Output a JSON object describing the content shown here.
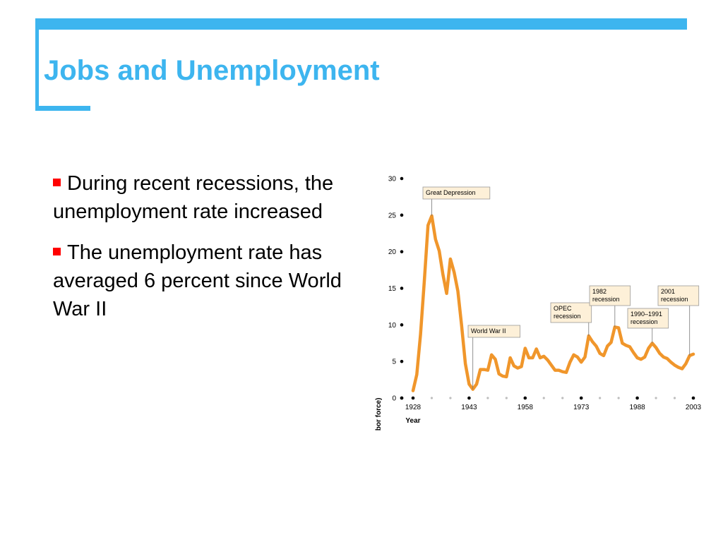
{
  "slide": {
    "title": "Jobs and Unemployment",
    "accent_color": "#3db5ef",
    "bullet_color": "#ff0000",
    "bullets": [
      "During recent recessions, the unemployment rate increased",
      "The unemployment rate has averaged 6 percent since World War II"
    ]
  },
  "chart_data": {
    "type": "line",
    "xlabel": "Year",
    "ylabel": "Unemployment rate (percentage of labor force)",
    "xlim": [
      1928,
      2003
    ],
    "ylim": [
      0,
      30
    ],
    "x_ticks": [
      1928,
      1943,
      1958,
      1973,
      1988,
      2003
    ],
    "y_ticks": [
      0,
      5,
      10,
      15,
      20,
      25,
      30
    ],
    "grid": false,
    "line_color": "#f0962b",
    "annotation_fill": "#fdf0d8",
    "series": [
      {
        "x": [
          1928,
          1929,
          1930,
          1931,
          1932,
          1933,
          1934,
          1935,
          1936,
          1937,
          1938,
          1939,
          1940,
          1941,
          1942,
          1943,
          1944,
          1945,
          1946,
          1947,
          1948,
          1949,
          1950,
          1951,
          1952,
          1953,
          1954,
          1955,
          1956,
          1957,
          1958,
          1959,
          1960,
          1961,
          1962,
          1963,
          1964,
          1965,
          1966,
          1967,
          1968,
          1969,
          1970,
          1971,
          1972,
          1973,
          1974,
          1975,
          1976,
          1977,
          1978,
          1979,
          1980,
          1981,
          1982,
          1983,
          1984,
          1985,
          1986,
          1987,
          1988,
          1989,
          1990,
          1991,
          1992,
          1993,
          1994,
          1995,
          1996,
          1997,
          1998,
          1999,
          2000,
          2001,
          2002,
          2003
        ],
        "values": [
          1.0,
          3.2,
          8.7,
          15.9,
          23.6,
          24.9,
          21.7,
          20.1,
          16.9,
          14.3,
          19.0,
          17.2,
          14.6,
          9.9,
          4.7,
          1.9,
          1.2,
          1.9,
          3.9,
          3.9,
          3.8,
          5.9,
          5.3,
          3.3,
          3.0,
          2.9,
          5.5,
          4.4,
          4.1,
          4.3,
          6.8,
          5.5,
          5.5,
          6.7,
          5.5,
          5.7,
          5.2,
          4.5,
          3.8,
          3.8,
          3.6,
          3.5,
          4.9,
          5.9,
          5.6,
          4.9,
          5.6,
          8.5,
          7.7,
          7.1,
          6.1,
          5.8,
          7.1,
          7.6,
          9.7,
          9.6,
          7.5,
          7.2,
          7.0,
          6.2,
          5.5,
          5.3,
          5.6,
          6.8,
          7.5,
          6.9,
          6.1,
          5.6,
          5.4,
          4.9,
          4.5,
          4.2,
          4.0,
          4.7,
          5.8,
          6.0
        ]
      }
    ],
    "annotations": [
      {
        "text": [
          "Great Depression"
        ],
        "x": 1933,
        "y": 24.9
      },
      {
        "text": [
          "World War II"
        ],
        "x": 1944,
        "y": 1.2
      },
      {
        "text": [
          "OPEC",
          "recession"
        ],
        "x": 1975,
        "y": 8.5
      },
      {
        "text": [
          "1982",
          "recession"
        ],
        "x": 1982,
        "y": 9.7
      },
      {
        "text": [
          "1990–1991",
          "recession"
        ],
        "x": 1992,
        "y": 7.5
      },
      {
        "text": [
          "2001",
          "recession"
        ],
        "x": 2002,
        "y": 5.8
      }
    ]
  }
}
